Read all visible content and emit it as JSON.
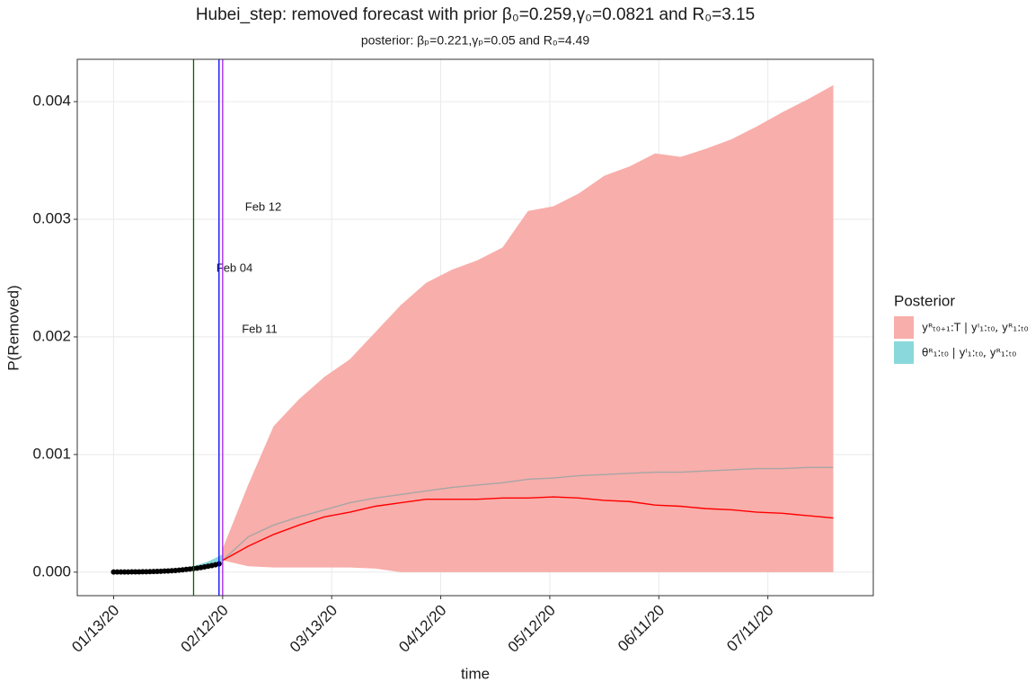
{
  "chart_data": {
    "type": "area",
    "title": "Hubei_step: removed forecast with prior β₀=0.259,γ₀=0.0821 and R₀=3.15",
    "subtitle": "posterior: βₚ=0.221,γₚ=0.05 and R₀=4.49",
    "x_label": "time",
    "y_label": "P(Removed)",
    "xlim": [
      "2020-01-03",
      "2020-08-09"
    ],
    "ylim": [
      -0.0002,
      0.00436
    ],
    "xticks": [
      {
        "value": "2020-01-13",
        "label": "01/13/20"
      },
      {
        "value": "2020-02-12",
        "label": "02/12/20"
      },
      {
        "value": "2020-03-13",
        "label": "03/13/20"
      },
      {
        "value": "2020-04-12",
        "label": "04/12/20"
      },
      {
        "value": "2020-05-12",
        "label": "05/12/20"
      },
      {
        "value": "2020-06-11",
        "label": "06/11/20"
      },
      {
        "value": "2020-07-11",
        "label": "07/11/20"
      }
    ],
    "yticks": [
      {
        "value": 0,
        "label": "0.000"
      },
      0.001,
      0.002,
      0.003,
      0.004
    ],
    "grid": true,
    "legend_title": "Posterior",
    "legend_position": "right",
    "series": [
      {
        "name": "yᴿₜ₀₊₁:T | yᴵ₁:ₜ₀, yᴿ₁:ₜ₀",
        "kind": "band",
        "color": "#f8aeaa",
        "x": [
          "2020-02-12",
          "2020-02-19",
          "2020-02-26",
          "2020-03-04",
          "2020-03-11",
          "2020-03-18",
          "2020-03-25",
          "2020-04-01",
          "2020-04-08",
          "2020-04-15",
          "2020-04-22",
          "2020-04-29",
          "2020-05-06",
          "2020-05-13",
          "2020-05-20",
          "2020-05-27",
          "2020-06-03",
          "2020-06-10",
          "2020-06-17",
          "2020-06-24",
          "2020-07-01",
          "2020-07-08",
          "2020-07-15",
          "2020-07-22",
          "2020-07-29"
        ],
        "lower": [
          0.0001,
          5e-05,
          4e-05,
          4e-05,
          4e-05,
          4e-05,
          3e-05,
          0,
          0,
          0,
          0,
          0,
          0,
          0,
          0,
          0,
          0,
          0,
          0,
          0,
          0,
          0,
          0,
          0,
          0
        ],
        "upper": [
          0.0002,
          0.00074,
          0.00124,
          0.00147,
          0.00166,
          0.00181,
          0.00204,
          0.00227,
          0.00246,
          0.00257,
          0.00265,
          0.00276,
          0.00307,
          0.00311,
          0.00322,
          0.00337,
          0.00345,
          0.00356,
          0.00353,
          0.0036,
          0.00368,
          0.00379,
          0.00391,
          0.00402,
          0.00414
        ]
      },
      {
        "name": "θᴿ₁:ₜ₀ | yᴵ₁:ₜ₀, yᴿ₁:ₜ₀",
        "kind": "band",
        "color": "#8ad8db",
        "x": [
          "2020-01-27",
          "2020-01-31",
          "2020-02-04",
          "2020-02-08",
          "2020-02-12"
        ],
        "lower": [
          5e-06,
          1.2e-05,
          2.2e-05,
          4e-05,
          7e-05
        ],
        "upper": [
          1e-05,
          2.5e-05,
          5e-05,
          9e-05,
          0.00015
        ]
      },
      {
        "kind": "line",
        "color": "#a6a6a6",
        "x": [
          "2020-02-12",
          "2020-02-19",
          "2020-02-26",
          "2020-03-04",
          "2020-03-11",
          "2020-03-18",
          "2020-03-25",
          "2020-04-01",
          "2020-04-08",
          "2020-04-15",
          "2020-04-22",
          "2020-04-29",
          "2020-05-06",
          "2020-05-13",
          "2020-05-20",
          "2020-05-27",
          "2020-06-03",
          "2020-06-10",
          "2020-06-17",
          "2020-06-24",
          "2020-07-01",
          "2020-07-08",
          "2020-07-15",
          "2020-07-22",
          "2020-07-29"
        ],
        "values": [
          0.0001,
          0.0003,
          0.0004,
          0.00047,
          0.00053,
          0.00059,
          0.00063,
          0.00066,
          0.00069,
          0.00072,
          0.00074,
          0.00076,
          0.00079,
          0.0008,
          0.00082,
          0.00083,
          0.00084,
          0.00085,
          0.00085,
          0.00086,
          0.00087,
          0.00088,
          0.00088,
          0.00089,
          0.00089
        ]
      },
      {
        "kind": "line",
        "color": "#ff0000",
        "x": [
          "2020-02-12",
          "2020-02-19",
          "2020-02-26",
          "2020-03-04",
          "2020-03-11",
          "2020-03-18",
          "2020-03-25",
          "2020-04-01",
          "2020-04-08",
          "2020-04-15",
          "2020-04-22",
          "2020-04-29",
          "2020-05-06",
          "2020-05-13",
          "2020-05-20",
          "2020-05-27",
          "2020-06-03",
          "2020-06-10",
          "2020-06-17",
          "2020-06-24",
          "2020-07-01",
          "2020-07-08",
          "2020-07-15",
          "2020-07-22",
          "2020-07-29"
        ],
        "values": [
          0.0001,
          0.00022,
          0.00032,
          0.0004,
          0.00047,
          0.00051,
          0.00056,
          0.00059,
          0.00062,
          0.00062,
          0.00062,
          0.00063,
          0.00063,
          0.00064,
          0.00063,
          0.00061,
          0.0006,
          0.00057,
          0.00056,
          0.00054,
          0.00053,
          0.00051,
          0.0005,
          0.00048,
          0.00046
        ]
      },
      {
        "kind": "points",
        "color": "#000000",
        "x": [
          "2020-01-13",
          "2020-01-14",
          "2020-01-15",
          "2020-01-16",
          "2020-01-17",
          "2020-01-18",
          "2020-01-19",
          "2020-01-20",
          "2020-01-21",
          "2020-01-22",
          "2020-01-23",
          "2020-01-24",
          "2020-01-25",
          "2020-01-26",
          "2020-01-27",
          "2020-01-28",
          "2020-01-29",
          "2020-01-30",
          "2020-01-31",
          "2020-02-01",
          "2020-02-02",
          "2020-02-03",
          "2020-02-04",
          "2020-02-05",
          "2020-02-06",
          "2020-02-07",
          "2020-02-08",
          "2020-02-09",
          "2020-02-10",
          "2020-02-11"
        ],
        "values": [
          1e-06,
          1e-06,
          1e-06,
          1e-06,
          1e-06,
          2e-06,
          2e-06,
          2e-06,
          3e-06,
          3e-06,
          4e-06,
          5e-06,
          6e-06,
          7e-06,
          9e-06,
          1e-05,
          1.2e-05,
          1.4e-05,
          1.7e-05,
          2e-05,
          2.3e-05,
          2.6e-05,
          3e-05,
          3.4e-05,
          3.9e-05,
          4.4e-05,
          5e-05,
          5.6e-05,
          6.3e-05,
          7e-05
        ]
      }
    ],
    "vlines": [
      {
        "x": "2020-02-04",
        "label": "Feb 04",
        "color": "#006400"
      },
      {
        "x": "2020-02-11",
        "label": "Feb 11",
        "color": "#0000ff"
      },
      {
        "x": "2020-02-12",
        "label": "Feb 12",
        "color": "#a020f0"
      }
    ]
  }
}
